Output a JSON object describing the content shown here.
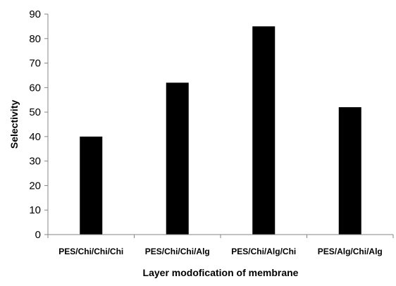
{
  "chart_data": {
    "type": "bar",
    "categories": [
      "PES/Chi/Chi/Chi",
      "PES/Chi/Chi/Alg",
      "PES/Chi/Alg/Chi",
      "PES/Alg/Chi/Alg"
    ],
    "values": [
      40,
      62,
      85,
      52
    ],
    "title": "",
    "xlabel": "Layer modofication of membrane",
    "ylabel": "Selectivity",
    "ylim": [
      0,
      90
    ],
    "yticks": [
      0,
      10,
      20,
      30,
      40,
      50,
      60,
      70,
      80,
      90
    ],
    "grid": false,
    "legend": "none",
    "bar_color": "#000000",
    "axis_color": "#868686"
  }
}
